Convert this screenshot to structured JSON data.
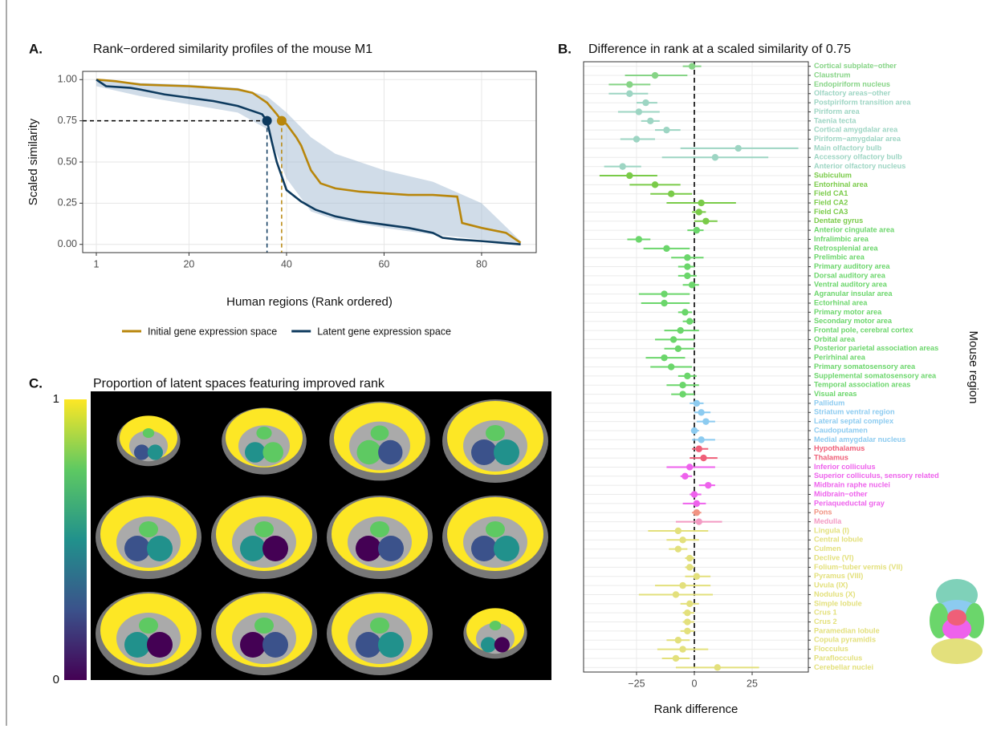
{
  "chart_data": [
    {
      "type": "line",
      "panel_label": "A.",
      "title": "Rank−ordered similarity profiles of the mouse M1",
      "xlabel": "Human regions (Rank ordered)",
      "ylabel": "Scaled similarity",
      "xlim": [
        -1.8,
        91.2
      ],
      "ylim": [
        -0.05,
        1.05
      ],
      "xticks": [
        1,
        20,
        40,
        60,
        80
      ],
      "yticks": [
        {
          "value": 0,
          "label": "0.00"
        },
        {
          "value": 0.25,
          "label": "0.25"
        },
        {
          "value": 0.5,
          "label": "0.50"
        },
        {
          "value": 0.75,
          "label": "0.75"
        },
        {
          "value": 1,
          "label": "1.00"
        }
      ],
      "grid": true,
      "legend": "bottom",
      "threshold": 0.75,
      "band": {
        "color": "#a9bfd6",
        "x": [
          1,
          10,
          20,
          30,
          36,
          40,
          45,
          50,
          60,
          70,
          80,
          88
        ],
        "lower": [
          0.96,
          0.9,
          0.85,
          0.8,
          0.7,
          0.4,
          0.2,
          0.15,
          0.1,
          0.06,
          0.03,
          0
        ],
        "upper": [
          1,
          0.98,
          0.97,
          0.95,
          0.9,
          0.8,
          0.65,
          0.55,
          0.45,
          0.38,
          0.25,
          0.02
        ]
      },
      "series": [
        {
          "name": "Initial gene expression space",
          "color": "#b8860b",
          "threshold_x": 39,
          "x": [
            1,
            5,
            10,
            20,
            30,
            33,
            36,
            38,
            39,
            40,
            42,
            43,
            45,
            47,
            50,
            55,
            60,
            65,
            70,
            75,
            76,
            80,
            85,
            88
          ],
          "values": [
            1,
            0.99,
            0.97,
            0.96,
            0.94,
            0.92,
            0.86,
            0.79,
            0.75,
            0.73,
            0.65,
            0.6,
            0.45,
            0.37,
            0.34,
            0.32,
            0.31,
            0.3,
            0.3,
            0.29,
            0.13,
            0.1,
            0.07,
            0.01
          ]
        },
        {
          "name": "Latent gene expression space",
          "color": "#0d3a5e",
          "threshold_x": 36,
          "x": [
            1,
            3,
            8,
            10,
            15,
            20,
            25,
            30,
            33,
            35,
            36,
            37,
            38,
            40,
            43,
            46,
            50,
            55,
            60,
            65,
            70,
            72,
            75,
            80,
            88
          ],
          "values": [
            1,
            0.96,
            0.95,
            0.94,
            0.91,
            0.89,
            0.87,
            0.84,
            0.81,
            0.79,
            0.75,
            0.62,
            0.5,
            0.33,
            0.26,
            0.21,
            0.17,
            0.14,
            0.12,
            0.1,
            0.07,
            0.04,
            0.03,
            0.02,
            0
          ]
        }
      ]
    },
    {
      "type": "dot_errorbar",
      "panel_label": "B.",
      "title": "Difference in rank at a scaled similarity of 0.75",
      "xlabel": "Rank difference",
      "ylabel": "Mouse region",
      "xlim": [
        -47.9,
        49.3
      ],
      "xticks": [
        {
          "value": -25,
          "label": "−25"
        },
        0,
        25
      ],
      "reference_line": 0,
      "grid": true,
      "groups": [
        {
          "color": "#86d486",
          "categories": [
            "Cortical subplate−other",
            "Claustrum",
            "Endopiriform nucleus"
          ],
          "values": [
            -1,
            -17,
            -28
          ],
          "err_low": [
            -5,
            -30,
            -37
          ],
          "err_high": [
            3,
            -3,
            -19
          ]
        },
        {
          "color": "#9dd5c3",
          "categories": [
            "Olfactory areas−other",
            "Postpiriform transition area",
            "Piriform area",
            "Taenia tecta",
            "Cortical amygdalar area",
            "Piriform−amygdalar area",
            "Main olfactory bulb",
            "Accessory olfactory bulb",
            "Anterior olfactory nucleus"
          ],
          "values": [
            -28,
            -21,
            -24,
            -19,
            -12,
            -25,
            19,
            9,
            -31
          ],
          "err_low": [
            -37,
            -25,
            -33,
            -23,
            -17,
            -32,
            -6,
            -14,
            -39
          ],
          "err_high": [
            -20,
            -16,
            -15,
            -15,
            -6,
            -17,
            45,
            32,
            -23
          ]
        },
        {
          "color": "#7acb49",
          "categories": [
            "Subiculum",
            "Entorhinal area",
            "Field CA1",
            "Field CA2",
            "Field CA3",
            "Dentate gyrus"
          ],
          "values": [
            -28,
            -17,
            -10,
            3,
            2,
            5
          ],
          "err_low": [
            -41,
            -28,
            -19,
            -12,
            -1,
            0
          ],
          "err_high": [
            -16,
            -6,
            -1,
            18,
            5,
            10
          ]
        },
        {
          "color": "#6bd66b",
          "categories": [
            "Anterior cingulate area",
            "Infralimbic area",
            "Retrosplenial area",
            "Prelimbic area",
            "Primary auditory area",
            "Dorsal auditory area",
            "Ventral auditory area",
            "Agranular insular area",
            "Ectorhinal area",
            "Primary motor area",
            "Secondary motor area",
            "Frontal pole, cerebral cortex",
            "Orbital area",
            "Posterior parietal association areas",
            "Perirhinal area",
            "Primary somatosensory area",
            "Supplemental somatosensory area",
            "Temporal association areas",
            "Visual areas"
          ],
          "values": [
            1,
            -24,
            -12,
            -3,
            -3,
            -3,
            -1,
            -13,
            -13,
            -4,
            -2,
            -6,
            -9,
            -7,
            -13,
            -10,
            -3,
            -5,
            -5
          ],
          "err_low": [
            -3,
            -29,
            -22,
            -10,
            -7,
            -7,
            -5,
            -24,
            -23,
            -7,
            -5,
            -13,
            -17,
            -13,
            -21,
            -19,
            -7,
            -12,
            -10
          ],
          "err_high": [
            4,
            -19,
            -2,
            4,
            0,
            1,
            2,
            -2,
            -2,
            -1,
            0,
            2,
            0,
            0,
            -4,
            -1,
            1,
            2,
            0
          ]
        },
        {
          "color": "#8ccbf0",
          "categories": [
            "Pallidum",
            "Striatum ventral region",
            "Lateral septal complex",
            "Caudoputamen",
            "Medial amygdalar nucleus"
          ],
          "values": [
            1,
            3,
            5,
            0,
            3
          ],
          "err_low": [
            -2,
            0,
            1,
            -1,
            -1
          ],
          "err_high": [
            4,
            7,
            9,
            2,
            9
          ]
        },
        {
          "color": "#ef5f78",
          "categories": [
            "Hypothalamus",
            "Thalamus"
          ],
          "values": [
            2,
            4
          ],
          "err_low": [
            -1,
            -2
          ],
          "err_high": [
            6,
            10
          ]
        },
        {
          "color": "#ee62ec",
          "categories": [
            "Inferior colliculus",
            "Superior colliculus, sensory related",
            "Midbrain raphe nuclei",
            "Midbrain−other",
            "Periaqueductal gray"
          ],
          "values": [
            -2,
            -4,
            6,
            0,
            1
          ],
          "err_low": [
            -12,
            -6,
            2,
            -2,
            -5
          ],
          "err_high": [
            9,
            -1,
            9,
            3,
            5
          ]
        },
        {
          "color": "#f19382",
          "categories": [
            "Pons"
          ],
          "values": [
            1
          ],
          "err_low": [
            -1
          ],
          "err_high": [
            3
          ]
        },
        {
          "color": "#f39ac3",
          "categories": [
            "Medulla"
          ],
          "values": [
            2
          ],
          "err_low": [
            -8
          ],
          "err_high": [
            12
          ]
        },
        {
          "color": "#e3e07c",
          "categories": [
            "Lingula (I)",
            "Central lobule",
            "Culmen",
            "Declive (VI)",
            "Folium−tuber vermis (VII)",
            "Pyramus (VIII)",
            "Uvula (IX)",
            "Nodulus (X)",
            "Simple lobule",
            "Crus 1",
            "Crus 2",
            "Paramedian lobule",
            "Copula pyramidis",
            "Flocculus",
            "Paraflocculus",
            "Cerebellar nuclei"
          ],
          "values": [
            -7,
            -5,
            -7,
            -2,
            -2,
            1,
            -5,
            -8,
            -2,
            -3,
            -3,
            -3,
            -7,
            -5,
            -8,
            10
          ],
          "err_low": [
            -20,
            -12,
            -11,
            -4,
            -4,
            -4,
            -17,
            -24,
            -6,
            -5,
            -5,
            -6,
            -12,
            -16,
            -14,
            -8
          ],
          "err_high": [
            6,
            2,
            -3,
            0,
            0,
            7,
            7,
            8,
            2,
            0,
            0,
            0,
            -2,
            6,
            -2,
            28
          ]
        }
      ]
    },
    {
      "type": "image",
      "panel_label": "C.",
      "title": "Proportion of latent spaces featuring improved rank",
      "colorbar": {
        "ticks": [
          0,
          1
        ],
        "colors": [
          "#440154",
          "#3b528b",
          "#21918c",
          "#5ec962",
          "#fde725"
        ]
      }
    }
  ]
}
